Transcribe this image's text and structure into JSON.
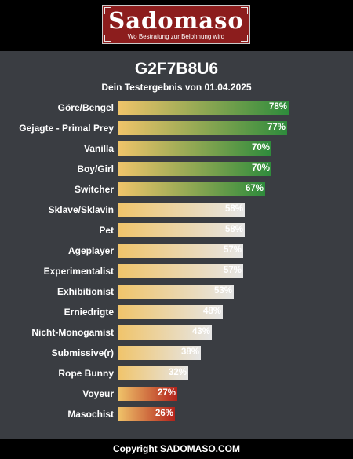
{
  "header": {
    "logo_text": "Sadomaso",
    "logo_tagline": "Wo Bestrafung zur Belohnung wird"
  },
  "result": {
    "title": "G2F7B8U6",
    "subtitle": "Dein Testergebnis von 01.04.2025"
  },
  "colors": {
    "bar_start": "#f0c46a",
    "high_end": "#2e8b3c",
    "mid_end": "#e6e6e6",
    "low_end": "#b3221b",
    "background": "#3a3d42"
  },
  "chart_data": {
    "type": "bar",
    "orientation": "horizontal",
    "xlim": [
      0,
      100
    ],
    "categories": [
      "Göre/Bengel",
      "Gejagte - Primal Prey",
      "Vanilla",
      "Boy/Girl",
      "Switcher",
      "Sklave/Sklavin",
      "Pet",
      "Ageplayer",
      "Experimentalist",
      "Exhibitionist",
      "Erniedrigte",
      "Nicht-Monogamist",
      "Submissive(r)",
      "Rope Bunny",
      "Voyeur",
      "Masochist"
    ],
    "values": [
      78,
      77,
      70,
      70,
      67,
      58,
      58,
      57,
      57,
      53,
      48,
      43,
      38,
      32,
      27,
      26
    ],
    "value_labels": [
      "78%",
      "77%",
      "70%",
      "70%",
      "67%",
      "58%",
      "58%",
      "57%",
      "57%",
      "53%",
      "48%",
      "43%",
      "38%",
      "32%",
      "27%",
      "26%"
    ]
  },
  "footer": {
    "text": "Copyright SADOMASO.COM"
  }
}
